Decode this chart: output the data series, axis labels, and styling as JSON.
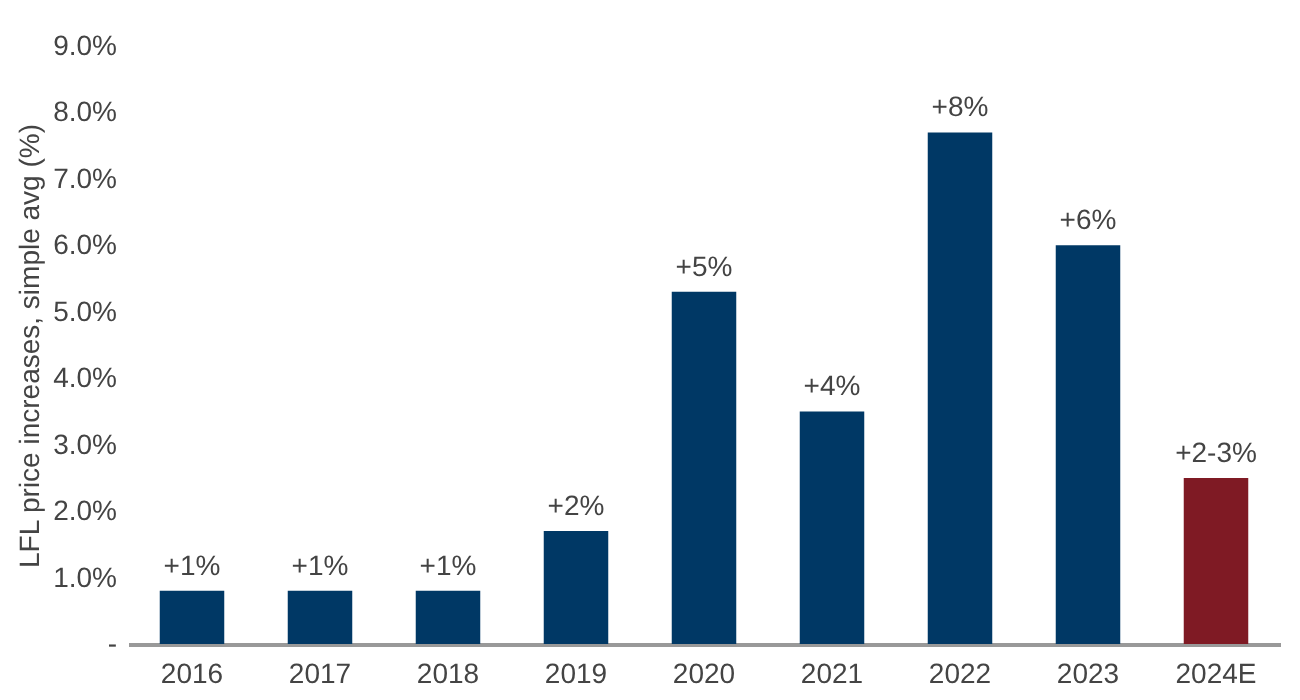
{
  "chart_data": {
    "type": "bar",
    "ylabel": "LFL price increases, simple avg (%)",
    "categories": [
      "2016",
      "2017",
      "2018",
      "2019",
      "2020",
      "2021",
      "2022",
      "2023",
      "2024E"
    ],
    "values": [
      0.8,
      0.8,
      0.8,
      1.7,
      5.3,
      3.5,
      7.7,
      6.0,
      2.5
    ],
    "colors": [
      "#003865",
      "#003865",
      "#003865",
      "#003865",
      "#003865",
      "#003865",
      "#003865",
      "#003865",
      "#7f1a24"
    ],
    "value_labels": [
      "+1%",
      "+1%",
      "+1%",
      "+2%",
      "+5%",
      "+4%",
      "+8%",
      "+6%",
      "+2-3%"
    ],
    "ylim": [
      0,
      9
    ],
    "yticks": [
      {
        "value": 0,
        "label": "-"
      },
      {
        "value": 1,
        "label": "1.0%"
      },
      {
        "value": 2,
        "label": "2.0%"
      },
      {
        "value": 3,
        "label": "3.0%"
      },
      {
        "value": 4,
        "label": "4.0%"
      },
      {
        "value": 5,
        "label": "5.0%"
      },
      {
        "value": 6,
        "label": "6.0%"
      },
      {
        "value": 7,
        "label": "7.0%"
      },
      {
        "value": 8,
        "label": "8.0%"
      },
      {
        "value": 9,
        "label": "9.0%"
      }
    ],
    "grid": false
  }
}
